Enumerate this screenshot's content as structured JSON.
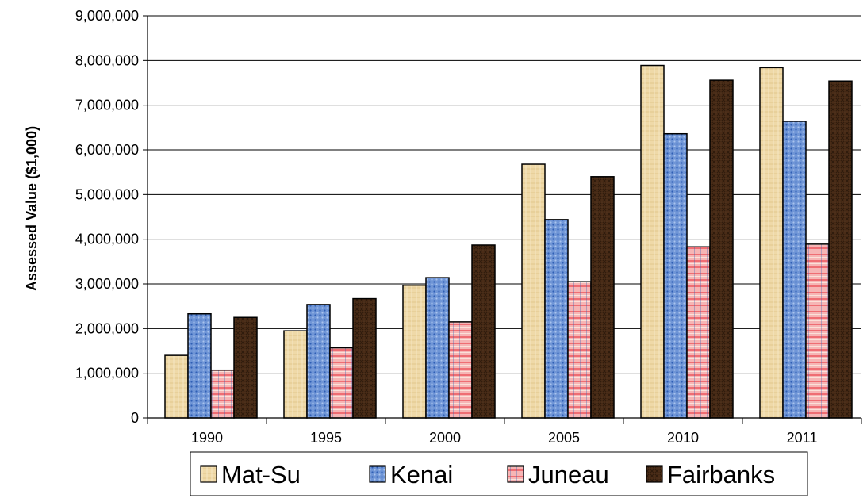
{
  "chart_data": {
    "type": "bar",
    "title": "",
    "xlabel": "",
    "ylabel": "Assessed Value ($1,000)",
    "categories": [
      "1990",
      "1995",
      "2000",
      "2005",
      "2010",
      "2011"
    ],
    "ylim": [
      0,
      9000000
    ],
    "yticks": [
      "0",
      "1,000,000",
      "2,000,000",
      "3,000,000",
      "4,000,000",
      "5,000,000",
      "6,000,000",
      "7,000,000",
      "8,000,000",
      "9,000,000"
    ],
    "ytick_values": [
      0,
      1000000,
      2000000,
      3000000,
      4000000,
      5000000,
      6000000,
      7000000,
      8000000,
      9000000
    ],
    "grid": true,
    "legend_position": "bottom",
    "series": [
      {
        "name": "Mat-Su",
        "color": "#efd9a8",
        "values": [
          1400000,
          1950000,
          2970000,
          5680000,
          7890000,
          7840000
        ]
      },
      {
        "name": "Kenai",
        "color": "#6f95d6",
        "values": [
          2330000,
          2540000,
          3140000,
          4440000,
          6360000,
          6640000
        ]
      },
      {
        "name": "Juneau",
        "color": "#f08c8c",
        "values": [
          1070000,
          1570000,
          2150000,
          3050000,
          3830000,
          3890000
        ]
      },
      {
        "name": "Fairbanks",
        "color": "#4a2c17",
        "values": [
          2250000,
          2670000,
          3870000,
          5400000,
          7560000,
          7540000
        ]
      }
    ]
  }
}
